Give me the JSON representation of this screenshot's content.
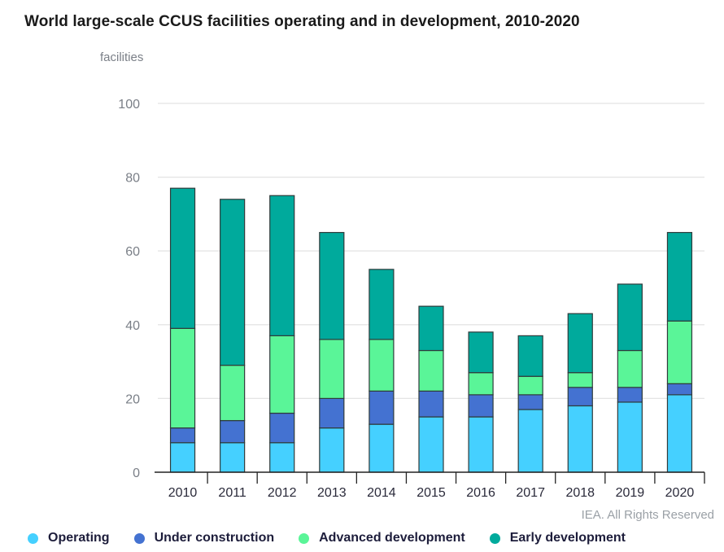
{
  "chart_data": {
    "type": "bar",
    "stacked": true,
    "title": "World large-scale CCUS facilities operating and in development, 2010-2020",
    "ylabel": "facilities",
    "xlabel": "",
    "ylim": [
      0,
      100
    ],
    "yticks": [
      0,
      20,
      40,
      60,
      80,
      100
    ],
    "grid": true,
    "legend_position": "bottom",
    "categories": [
      "2010",
      "2011",
      "2012",
      "2013",
      "2014",
      "2015",
      "2016",
      "2017",
      "2018",
      "2019",
      "2020"
    ],
    "series": [
      {
        "name": "Operating",
        "color": "#45d0ff",
        "values": [
          8,
          8,
          8,
          12,
          13,
          15,
          15,
          17,
          18,
          19,
          21
        ]
      },
      {
        "name": "Under construction",
        "color": "#4472d1",
        "values": [
          4,
          6,
          8,
          8,
          9,
          7,
          6,
          4,
          5,
          4,
          3
        ]
      },
      {
        "name": "Advanced development",
        "color": "#5af598",
        "values": [
          27,
          15,
          21,
          16,
          14,
          11,
          6,
          5,
          4,
          10,
          17
        ]
      },
      {
        "name": "Early development",
        "color": "#00aa9c",
        "values": [
          38,
          45,
          38,
          29,
          19,
          12,
          11,
          11,
          16,
          18,
          24
        ]
      }
    ],
    "source": "IEA. All Rights Reserved"
  }
}
